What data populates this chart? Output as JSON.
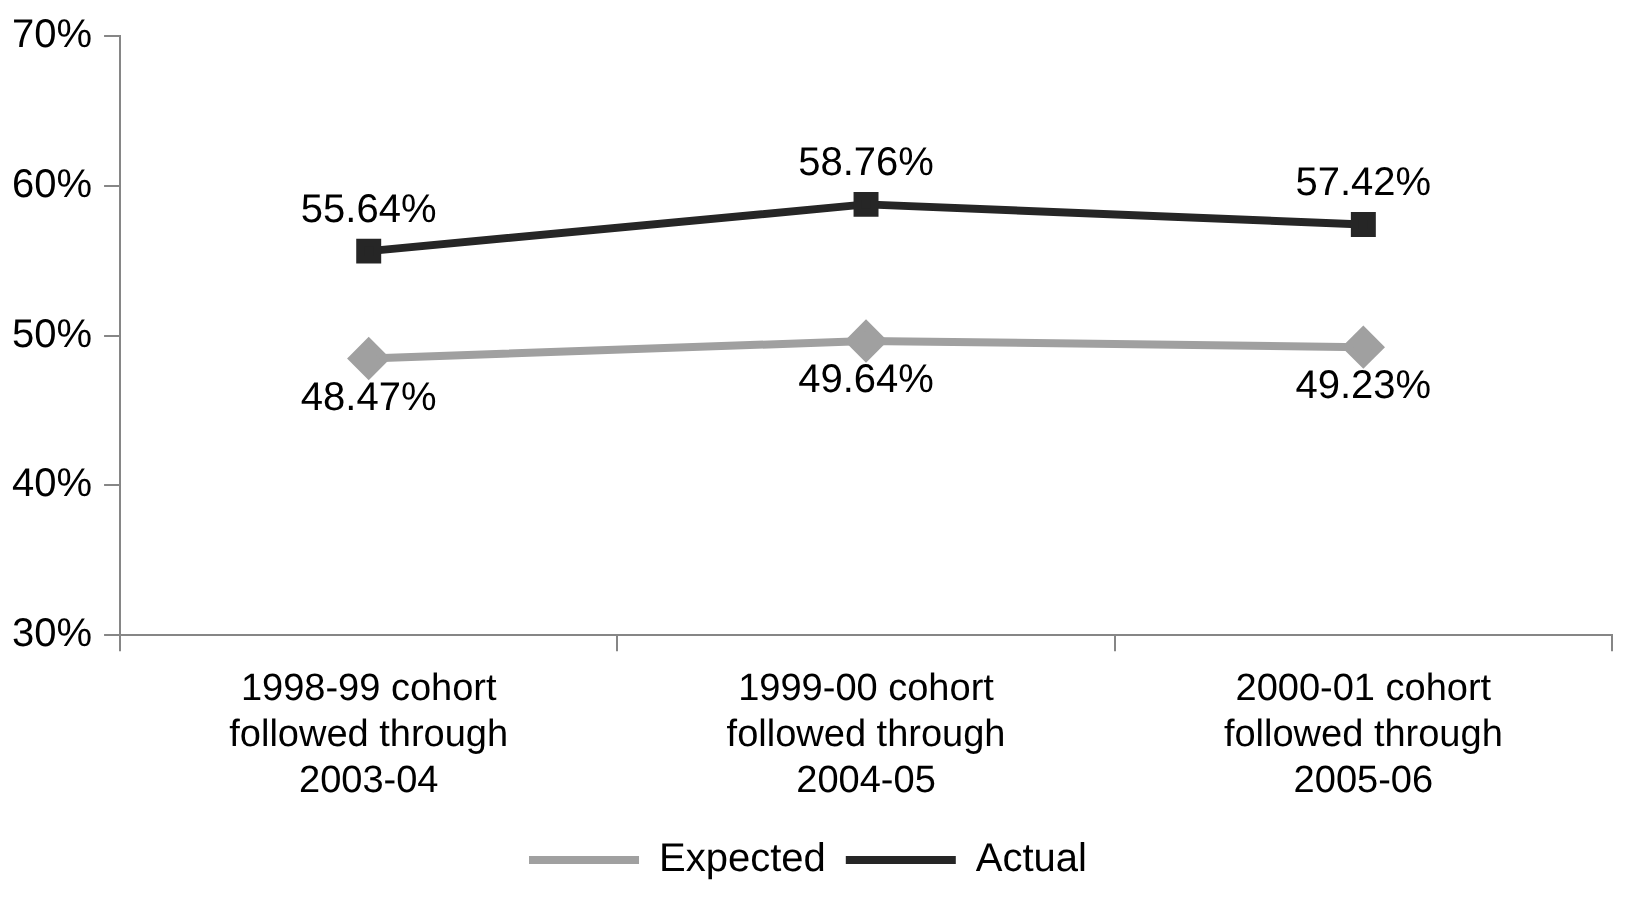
{
  "chart_data": {
    "type": "line",
    "categories": [
      "1998-99 cohort followed through 2003-04",
      "1999-00 cohort followed through 2004-05",
      "2000-01 cohort followed through 2005-06"
    ],
    "series": [
      {
        "name": "Expected",
        "color": "#a0a0a0",
        "marker": "diamond",
        "values": [
          48.47,
          49.64,
          49.23
        ],
        "value_labels": [
          "48.47%",
          "49.64%",
          "49.23%"
        ]
      },
      {
        "name": "Actual",
        "color": "#262626",
        "marker": "square",
        "values": [
          55.64,
          58.76,
          57.42
        ],
        "value_labels": [
          "55.64%",
          "58.76%",
          "57.42%"
        ]
      }
    ],
    "ylim": [
      30,
      70
    ],
    "yticks": [
      {
        "value": 30,
        "label": "30%"
      },
      {
        "value": 40,
        "label": "40%"
      },
      {
        "value": 50,
        "label": "50%"
      },
      {
        "value": 60,
        "label": "60%"
      },
      {
        "value": 70,
        "label": "70%"
      }
    ],
    "grid": false,
    "legend": "bottom",
    "line_style": "solid"
  }
}
